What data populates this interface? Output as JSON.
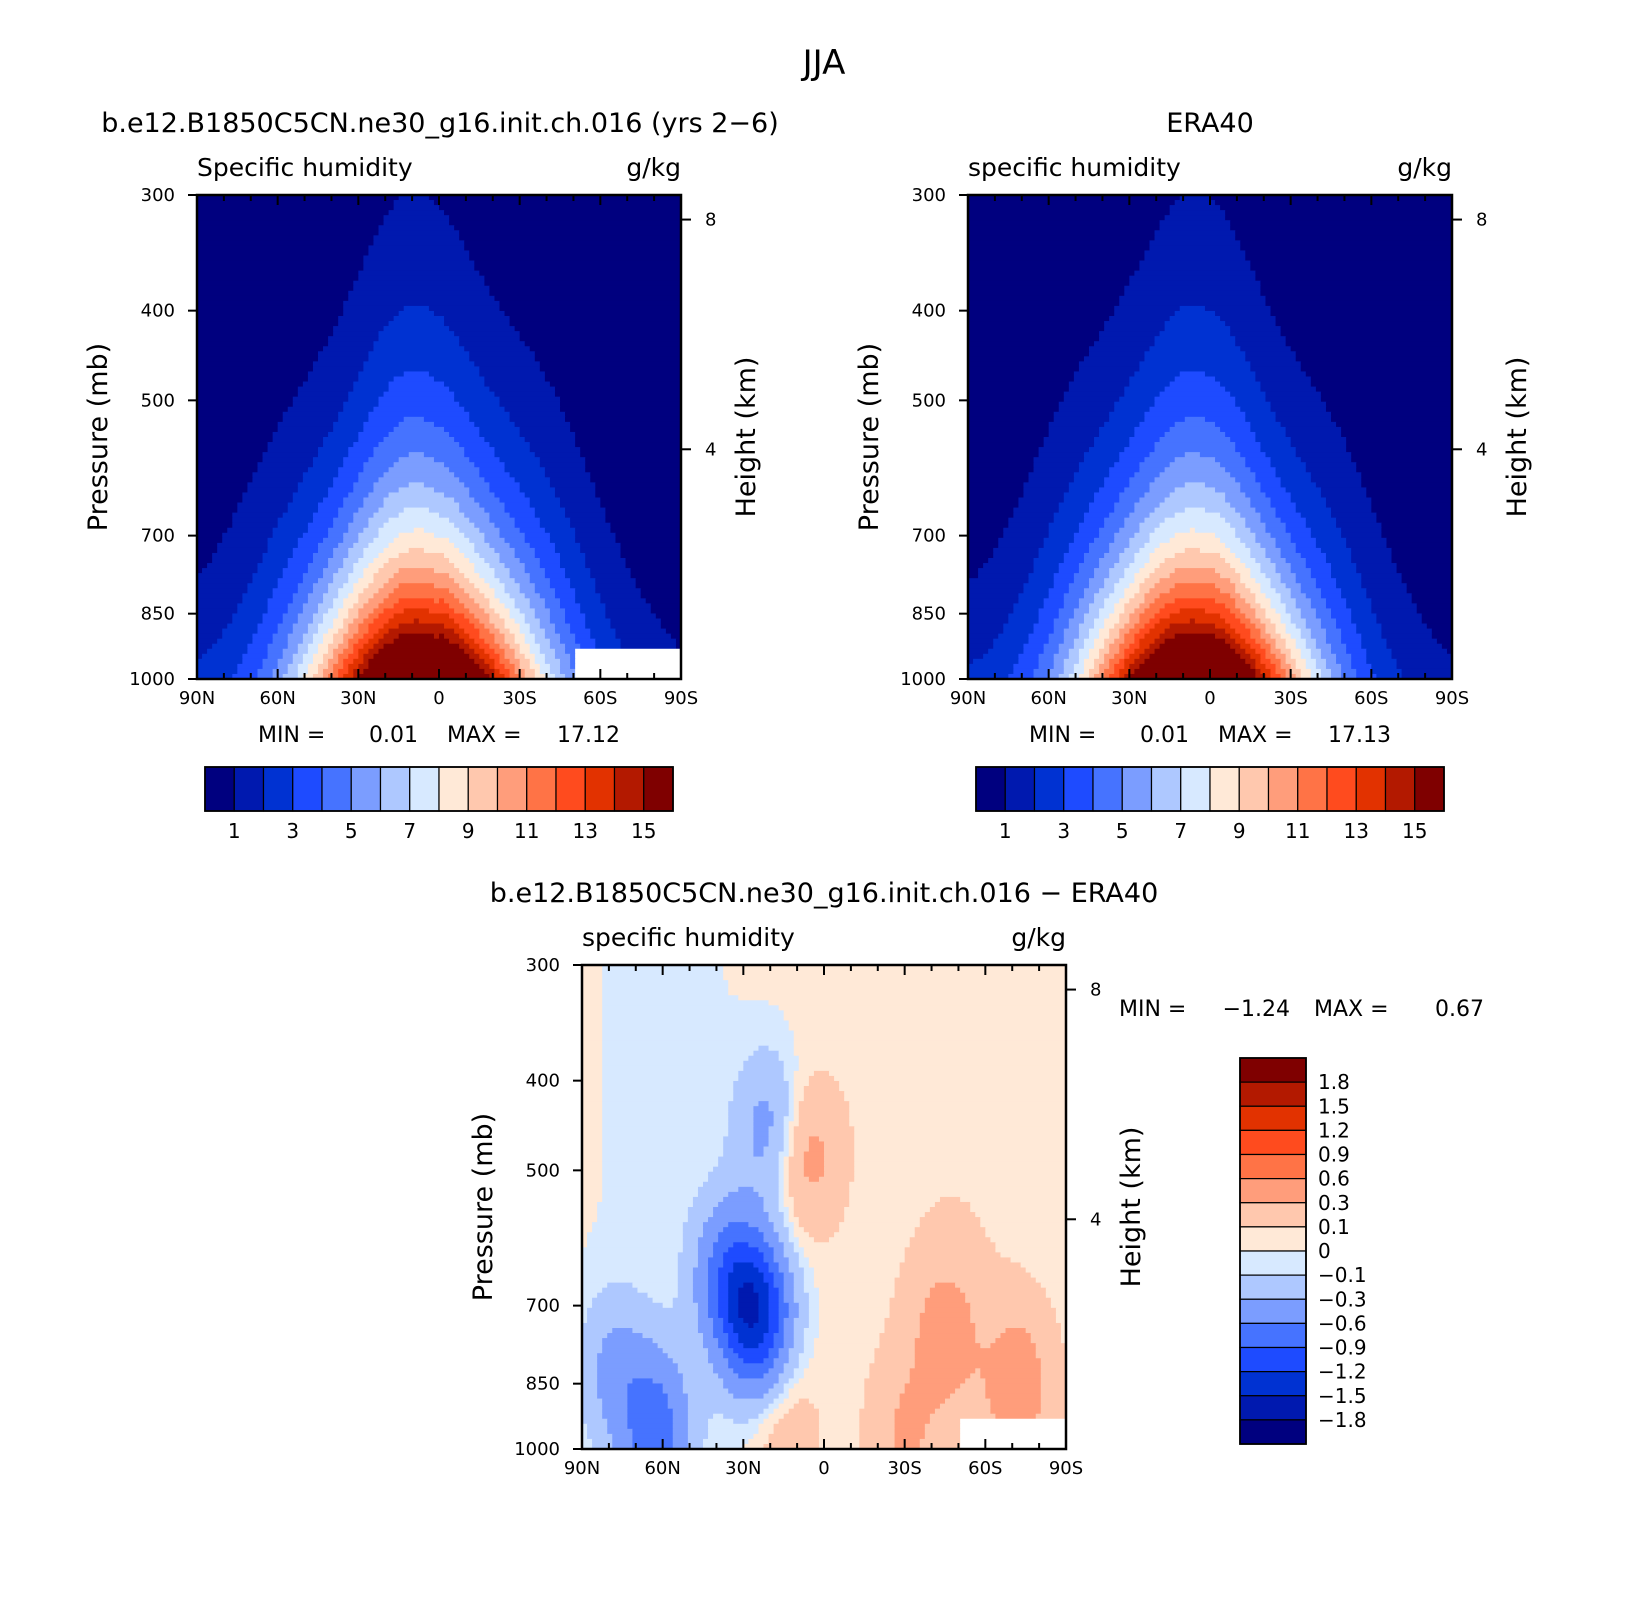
{
  "figure": {
    "title": "JJA",
    "model_label": "b.e12.B1850C5CN.ne30_g16.init.ch.016 (yrs 2−6)",
    "obs_label": "ERA40",
    "diff_label": "b.e12.B1850C5CN.ne30_g16.init.ch.016 − ERA40"
  },
  "chart_data": [
    {
      "type": "contour",
      "name": "model",
      "title": "b.e12.B1850C5CN.ne30_g16.init.ch.016 (yrs 2−6)",
      "variable": "Specific humidity",
      "units": "g/kg",
      "xlabel": "",
      "ylabel": "Pressure (mb)",
      "y2label": "Height (km)",
      "x_ticks": [
        "90N",
        "60N",
        "30N",
        "0",
        "30S",
        "60S",
        "90S"
      ],
      "x_tick_lat": [
        90,
        60,
        30,
        0,
        -30,
        -60,
        -90
      ],
      "y_ticks": [
        300,
        400,
        500,
        700,
        850,
        1000
      ],
      "y2_ticks": [
        8,
        4
      ],
      "xlim": [
        90,
        -90
      ],
      "ylim": [
        1000,
        300
      ],
      "min_label": "MIN =",
      "min": "0.01",
      "max_label": "MAX =",
      "max": "17.12",
      "peak": {
        "lat": 7,
        "value": 17.12,
        "width": 30
      },
      "levels": [
        1,
        2,
        3,
        4,
        5,
        6,
        7,
        8,
        9,
        10,
        11,
        12,
        13,
        14,
        15,
        16
      ],
      "colorbar_labels": [
        "1",
        "3",
        "5",
        "7",
        "9",
        "11",
        "13",
        "15"
      ],
      "colors": [
        "#00007f",
        "#0019af",
        "#0032d2",
        "#1e4bff",
        "#4673ff",
        "#7b9dff",
        "#aec8ff",
        "#d7e9ff",
        "#ffe9d7",
        "#ffc8ae",
        "#ff9d7b",
        "#ff7346",
        "#ff4b1e",
        "#e23200",
        "#b31900",
        "#7f0000"
      ],
      "missing_region": {
        "lat_min": -51,
        "pressure_min": 925
      }
    },
    {
      "type": "contour",
      "name": "obs",
      "title": "ERA40",
      "variable": "specific humidity",
      "units": "g/kg",
      "xlabel": "",
      "ylabel": "Pressure (mb)",
      "y2label": "Height (km)",
      "x_ticks": [
        "90N",
        "60N",
        "30N",
        "0",
        "30S",
        "60S",
        "90S"
      ],
      "x_tick_lat": [
        90,
        60,
        30,
        0,
        -30,
        -60,
        -90
      ],
      "y_ticks": [
        300,
        400,
        500,
        700,
        850,
        1000
      ],
      "y2_ticks": [
        8,
        4
      ],
      "xlim": [
        90,
        -90
      ],
      "ylim": [
        1000,
        300
      ],
      "min_label": "MIN =",
      "min": "0.01",
      "max_label": "MAX =",
      "max": "17.13",
      "peak": {
        "lat": 7,
        "value": 17.13,
        "width": 29
      },
      "levels": [
        1,
        2,
        3,
        4,
        5,
        6,
        7,
        8,
        9,
        10,
        11,
        12,
        13,
        14,
        15,
        16
      ],
      "colorbar_labels": [
        "1",
        "3",
        "5",
        "7",
        "9",
        "11",
        "13",
        "15"
      ],
      "colors": [
        "#00007f",
        "#0019af",
        "#0032d2",
        "#1e4bff",
        "#4673ff",
        "#7b9dff",
        "#aec8ff",
        "#d7e9ff",
        "#ffe9d7",
        "#ffc8ae",
        "#ff9d7b",
        "#ff7346",
        "#ff4b1e",
        "#e23200",
        "#b31900",
        "#7f0000"
      ]
    },
    {
      "type": "contour",
      "name": "difference",
      "title": "b.e12.B1850C5CN.ne30_g16.init.ch.016 − ERA40",
      "variable": "specific humidity",
      "units": "g/kg",
      "xlabel": "",
      "ylabel": "Pressure (mb)",
      "y2label": "Height (km)",
      "x_ticks": [
        "90N",
        "60N",
        "30N",
        "0",
        "30S",
        "60S",
        "90S"
      ],
      "x_tick_lat": [
        90,
        60,
        30,
        0,
        -30,
        -60,
        -90
      ],
      "y_ticks": [
        300,
        400,
        500,
        700,
        850,
        1000
      ],
      "y2_ticks": [
        8,
        4
      ],
      "xlim": [
        90,
        -90
      ],
      "ylim": [
        1000,
        300
      ],
      "min_label": "MIN =",
      "min": "−1.24",
      "max_label": "MAX =",
      "max": "0.67",
      "levels": [
        -1.8,
        -1.5,
        -1.2,
        -0.9,
        -0.6,
        -0.3,
        -0.1,
        0,
        0.1,
        0.3,
        0.6,
        0.9,
        1.2,
        1.5,
        1.8
      ],
      "colorbar_labels": [
        "1.8",
        "1.5",
        "1.2",
        "0.9",
        "0.6",
        "0.3",
        "0.1",
        "0",
        "−0.1",
        "−0.3",
        "−0.6",
        "−0.9",
        "−1.2",
        "−1.5",
        "−1.8"
      ],
      "colors": [
        "#00007f",
        "#0019af",
        "#0032d2",
        "#1e4bff",
        "#4673ff",
        "#7b9dff",
        "#aec8ff",
        "#d7e9ff",
        "#ffe9d7",
        "#ffc8ae",
        "#ff9d7b",
        "#ff7346",
        "#ff4b1e",
        "#e23200",
        "#b31900",
        "#7f0000"
      ],
      "features": [
        {
          "lat": 25,
          "p": 720,
          "value": -1.3
        },
        {
          "lat": 35,
          "p": 650,
          "value": -0.7
        },
        {
          "lat": 20,
          "p": 450,
          "value": -0.45
        },
        {
          "lat": 63,
          "p": 950,
          "value": -0.75
        },
        {
          "lat": 78,
          "p": 820,
          "value": -0.35
        },
        {
          "lat": 7,
          "p": 480,
          "value": 0.4
        },
        {
          "lat": -45,
          "p": 750,
          "value": 0.35
        },
        {
          "lat": -72,
          "p": 850,
          "value": 0.4
        },
        {
          "lat": 15,
          "p": 950,
          "value": 0.2
        },
        {
          "lat": -30,
          "p": 960,
          "value": 0.25
        }
      ],
      "missing_region": {
        "lat_min": -51,
        "pressure_min": 925
      }
    }
  ]
}
